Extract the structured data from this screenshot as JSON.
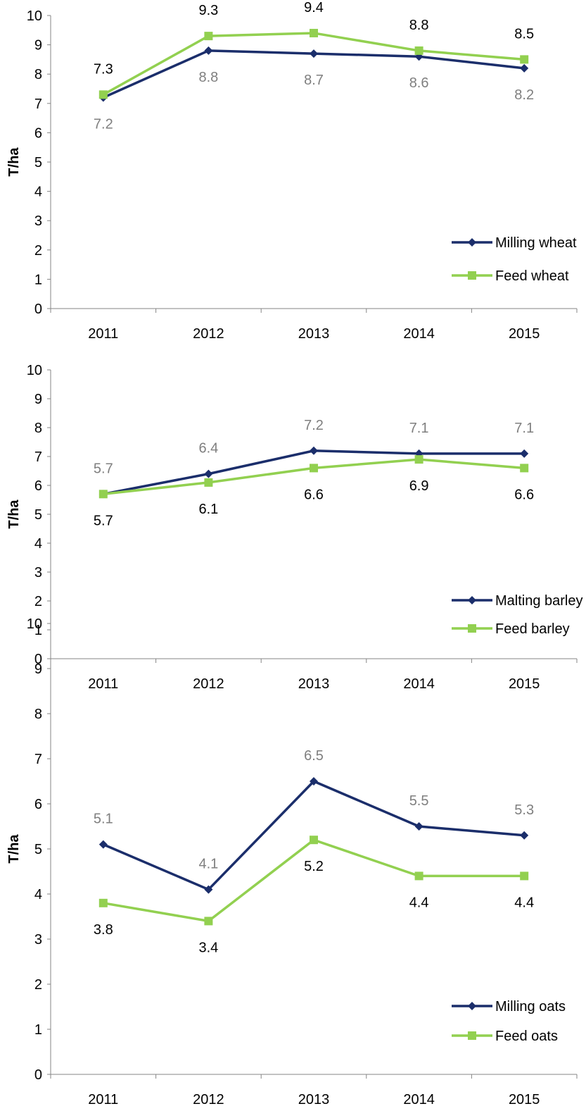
{
  "chart_data": [
    {
      "type": "line",
      "title": "",
      "xlabel": "",
      "ylabel": "T/ha",
      "ylim": [
        0,
        10
      ],
      "yticks": [
        "0",
        "1",
        "2",
        "3",
        "4",
        "5",
        "6",
        "7",
        "8",
        "9",
        "10"
      ],
      "categories": [
        "2011",
        "2012",
        "2013",
        "2014",
        "2015"
      ],
      "legend_position": "bottom-right",
      "grid": false,
      "series": [
        {
          "name": "Milling wheat",
          "values": [
            7.2,
            8.8,
            8.7,
            8.6,
            8.2
          ],
          "labels": [
            "7.2",
            "8.8",
            "8.7",
            "8.6",
            "8.2"
          ],
          "color": "#1b2e6b",
          "marker": "diamond",
          "label_color": "#7f7f7f",
          "label_position": "below"
        },
        {
          "name": "Feed wheat",
          "values": [
            7.3,
            9.3,
            9.4,
            8.8,
            8.5
          ],
          "labels": [
            "7.3",
            "9.3",
            "9.4",
            "8.8",
            "8.5"
          ],
          "color": "#92d050",
          "marker": "square",
          "label_color": "#000000",
          "label_position": "above"
        }
      ]
    },
    {
      "type": "line",
      "title": "",
      "xlabel": "",
      "ylabel": "T/ha",
      "ylim": [
        0,
        10
      ],
      "yticks": [
        "0",
        "1",
        "2",
        "3",
        "4",
        "5",
        "6",
        "7",
        "8",
        "9",
        "10"
      ],
      "categories": [
        "2011",
        "2012",
        "2013",
        "2014",
        "2015"
      ],
      "legend_position": "bottom-right",
      "grid": false,
      "series": [
        {
          "name": "Malting barley",
          "values": [
            5.7,
            6.4,
            7.2,
            7.1,
            7.1
          ],
          "labels": [
            "5.7",
            "6.4",
            "7.2",
            "7.1",
            "7.1"
          ],
          "color": "#1b2e6b",
          "marker": "diamond",
          "label_color": "#7f7f7f",
          "label_position": "above"
        },
        {
          "name": "Feed barley",
          "values": [
            5.7,
            6.1,
            6.6,
            6.9,
            6.6
          ],
          "labels": [
            "5.7",
            "6.1",
            "6.6",
            "6.9",
            "6.6"
          ],
          "color": "#92d050",
          "marker": "square",
          "label_color": "#000000",
          "label_position": "below"
        }
      ]
    },
    {
      "type": "line",
      "title": "",
      "xlabel": "",
      "ylabel": "T/ha",
      "ylim": [
        0,
        10
      ],
      "yticks": [
        "0",
        "1",
        "2",
        "3",
        "4",
        "5",
        "6",
        "7",
        "8",
        "9",
        "10"
      ],
      "categories": [
        "2011",
        "2012",
        "2013",
        "2014",
        "2015"
      ],
      "legend_position": "bottom-right",
      "grid": false,
      "series": [
        {
          "name": "Milling oats",
          "values": [
            5.1,
            4.1,
            6.5,
            5.5,
            5.3
          ],
          "labels": [
            "5.1",
            "4.1",
            "6.5",
            "5.5",
            "5.3"
          ],
          "color": "#1b2e6b",
          "marker": "diamond",
          "label_color": "#7f7f7f",
          "label_position": "above"
        },
        {
          "name": "Feed oats",
          "values": [
            3.8,
            3.4,
            5.2,
            4.4,
            4.4
          ],
          "labels": [
            "3.8",
            "3.4",
            "5.2",
            "4.4",
            "4.4"
          ],
          "color": "#92d050",
          "marker": "square",
          "label_color": "#000000",
          "label_position": "below"
        }
      ]
    }
  ]
}
